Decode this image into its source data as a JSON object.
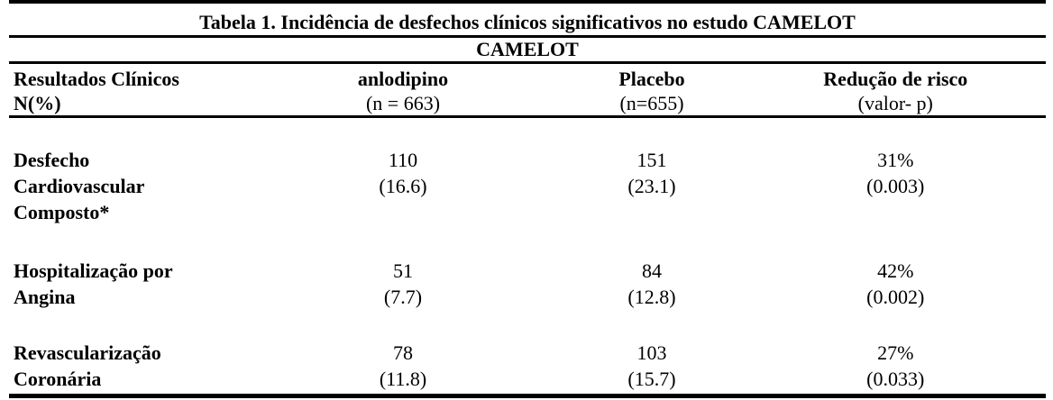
{
  "table": {
    "title": "Tabela 1. Incidência de desfechos clínicos significativos no estudo CAMELOT",
    "subtitle": "CAMELOT",
    "columns": [
      {
        "line1": "Resultados Clínicos",
        "line2": "N(%)"
      },
      {
        "line1": "anlodipino",
        "line2": "(n = 663)"
      },
      {
        "line1": "Placebo",
        "line2": "(n=655)"
      },
      {
        "line1": "Redução de risco",
        "line2": "(valor- p)"
      }
    ],
    "rows": [
      {
        "label_lines": [
          "Desfecho",
          "Cardiovascular",
          "Composto*"
        ],
        "anlodipino": {
          "n": "110",
          "pct": "(16.6)"
        },
        "placebo": {
          "n": "151",
          "pct": "(23.1)"
        },
        "risk": {
          "value": "31%",
          "p": "(0.003)"
        }
      },
      {
        "label_lines": [
          "Hospitalização por",
          "Angina"
        ],
        "anlodipino": {
          "n": "51",
          "pct": "(7.7)"
        },
        "placebo": {
          "n": "84",
          "pct": "(12.8)"
        },
        "risk": {
          "value": "42%",
          "p": "(0.002)"
        }
      },
      {
        "label_lines": [
          "Revascularização",
          "Coronária"
        ],
        "anlodipino": {
          "n": "78",
          "pct": "(11.8)"
        },
        "placebo": {
          "n": "103",
          "pct": "(15.7)"
        },
        "risk": {
          "value": "27%",
          "p": "(0.033)"
        }
      }
    ]
  }
}
